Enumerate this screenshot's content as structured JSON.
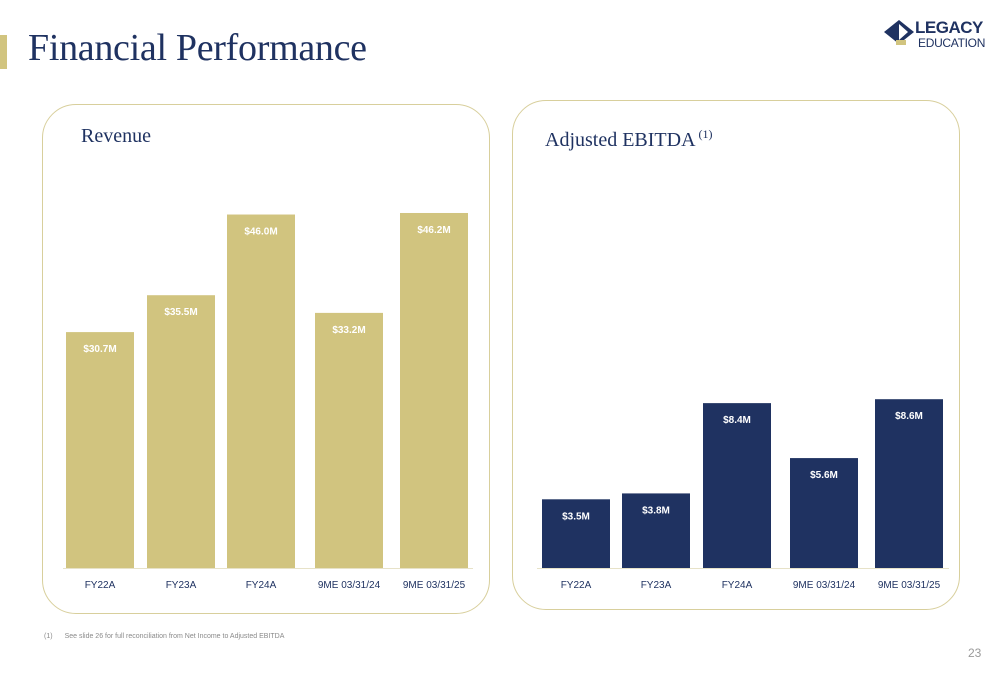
{
  "header": {
    "title": "Financial Performance",
    "logo": {
      "line1": "LEGACY",
      "line2": "EDUCATION",
      "icon": "graduation-cap-icon"
    }
  },
  "colors": {
    "accent": "#d1c47f",
    "navy": "#1f3261",
    "revenue_bar": "#d1c47f",
    "ebitda_bar": "#1f3261",
    "panel_border": "#d8cf9c"
  },
  "chart_data": [
    {
      "type": "bar",
      "title": "Revenue",
      "title_superscript": "",
      "categories": [
        "FY22A",
        "FY23A",
        "FY24A",
        "9ME 03/31/24",
        "9ME 03/31/25"
      ],
      "values": [
        30.7,
        35.5,
        46.0,
        33.2,
        46.2
      ],
      "data_labels": [
        "$30.7M",
        "$35.5M",
        "$46.0M",
        "$33.2M",
        "$46.2M"
      ],
      "ylim": [
        0,
        47.5
      ],
      "xlabel": "",
      "ylabel": "",
      "grid": false,
      "bar_color": "#d1c47f"
    },
    {
      "type": "bar",
      "title": "Adjusted EBITDA",
      "title_superscript": "(1)",
      "categories": [
        "FY22A",
        "FY23A",
        "FY24A",
        "9ME 03/31/24",
        "9ME 03/31/25"
      ],
      "values": [
        3.5,
        3.8,
        8.4,
        5.6,
        8.6
      ],
      "data_labels": [
        "$3.5M",
        "$3.8M",
        "$8.4M",
        "$5.6M",
        "$8.6M"
      ],
      "ylim": [
        0,
        18.8
      ],
      "xlabel": "",
      "ylabel": "",
      "grid": false,
      "bar_color": "#1f3261"
    }
  ],
  "footnote": {
    "marker": "(1)",
    "text": "See slide 26 for full reconciliation from Net Income to Adjusted EBITDA"
  },
  "page_number": "23"
}
